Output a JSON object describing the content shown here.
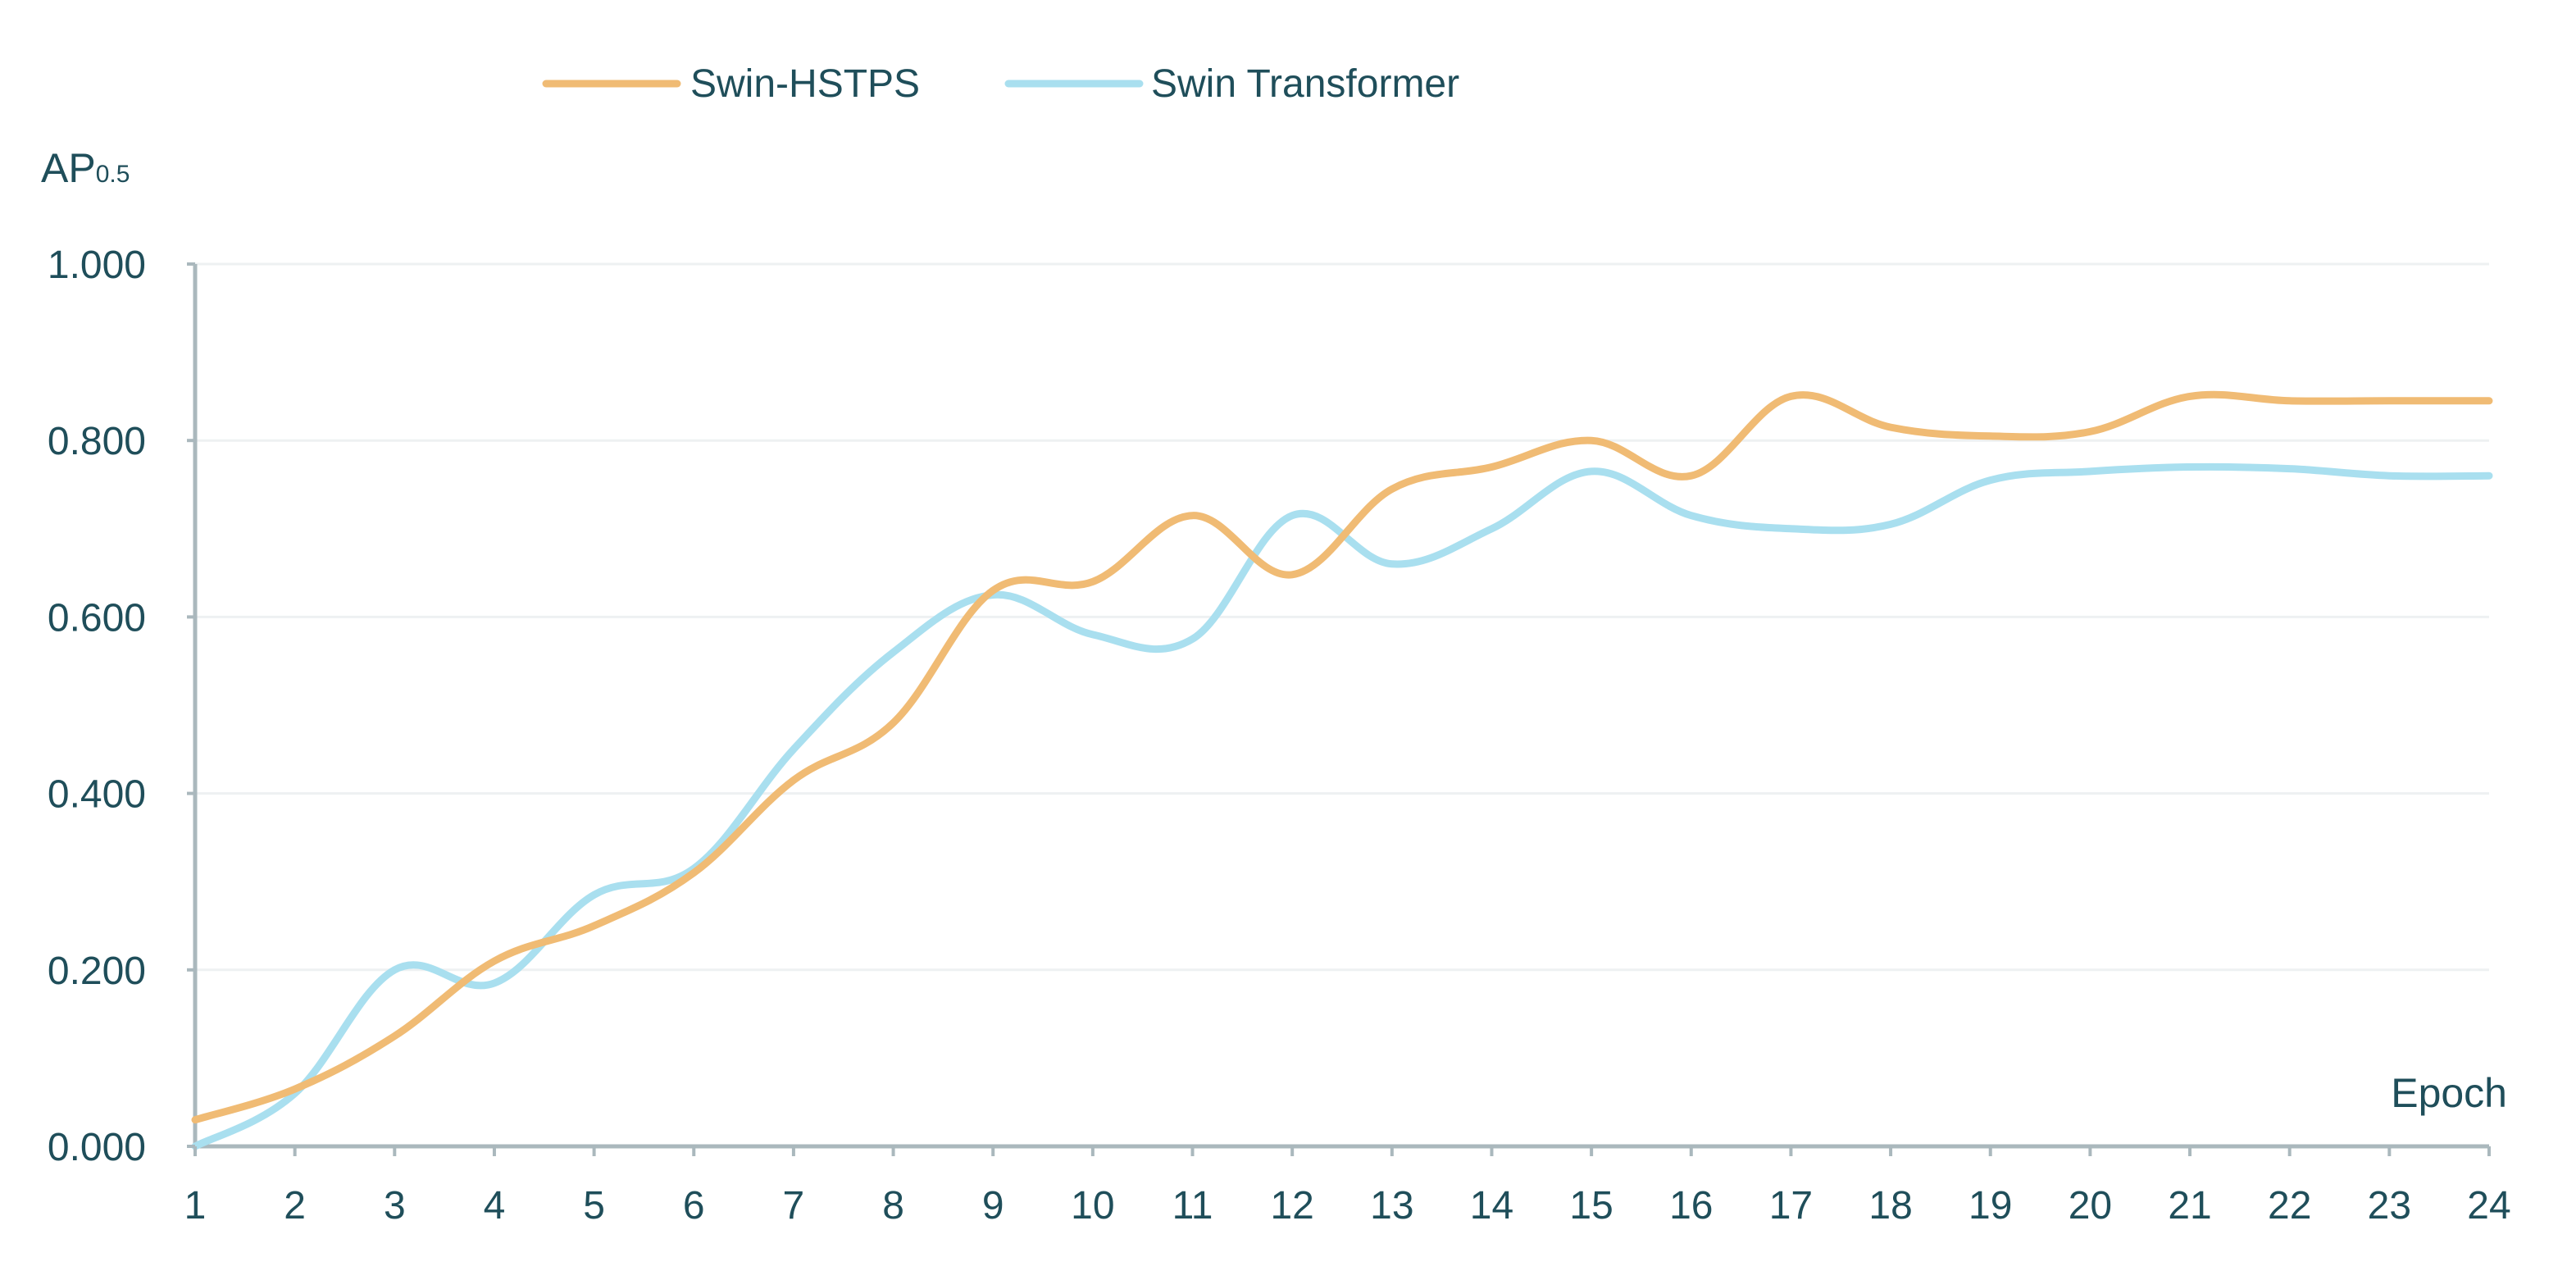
{
  "chart_data": {
    "type": "line",
    "title": "",
    "xlabel": "Epoch",
    "ylabel_main": "AP",
    "ylabel_sub": "0.5",
    "x": [
      1,
      2,
      3,
      4,
      5,
      6,
      7,
      8,
      9,
      10,
      11,
      12,
      13,
      14,
      15,
      16,
      17,
      18,
      19,
      20,
      21,
      22,
      23,
      24
    ],
    "x_tick_labels": [
      "1",
      "2",
      "3",
      "4",
      "5",
      "6",
      "7",
      "8",
      "9",
      "10",
      "11",
      "12",
      "13",
      "14",
      "15",
      "16",
      "17",
      "18",
      "19",
      "20",
      "21",
      "22",
      "23",
      "24"
    ],
    "ylim": [
      0,
      1
    ],
    "y_ticks": [
      0,
      0.2,
      0.4,
      0.6,
      0.8,
      1.0
    ],
    "y_tick_labels": [
      "0.000",
      "0.200",
      "0.400",
      "0.600",
      "0.800",
      "1.000"
    ],
    "grid": true,
    "legend_position": "top-center",
    "series": [
      {
        "name": "Swin-HSTPS",
        "color": "#F0BB74",
        "values": [
          0.03,
          0.065,
          0.125,
          0.21,
          0.25,
          0.31,
          0.415,
          0.48,
          0.63,
          0.64,
          0.715,
          0.648,
          0.745,
          0.77,
          0.8,
          0.76,
          0.85,
          0.815,
          0.805,
          0.81,
          0.85,
          0.845,
          0.845,
          0.845
        ]
      },
      {
        "name": "Swin Transformer",
        "color": "#A9DFEF",
        "values": [
          0.0,
          0.06,
          0.2,
          0.185,
          0.285,
          0.315,
          0.45,
          0.56,
          0.625,
          0.58,
          0.575,
          0.715,
          0.66,
          0.7,
          0.765,
          0.715,
          0.7,
          0.705,
          0.755,
          0.765,
          0.77,
          0.768,
          0.76,
          0.76
        ]
      }
    ]
  }
}
